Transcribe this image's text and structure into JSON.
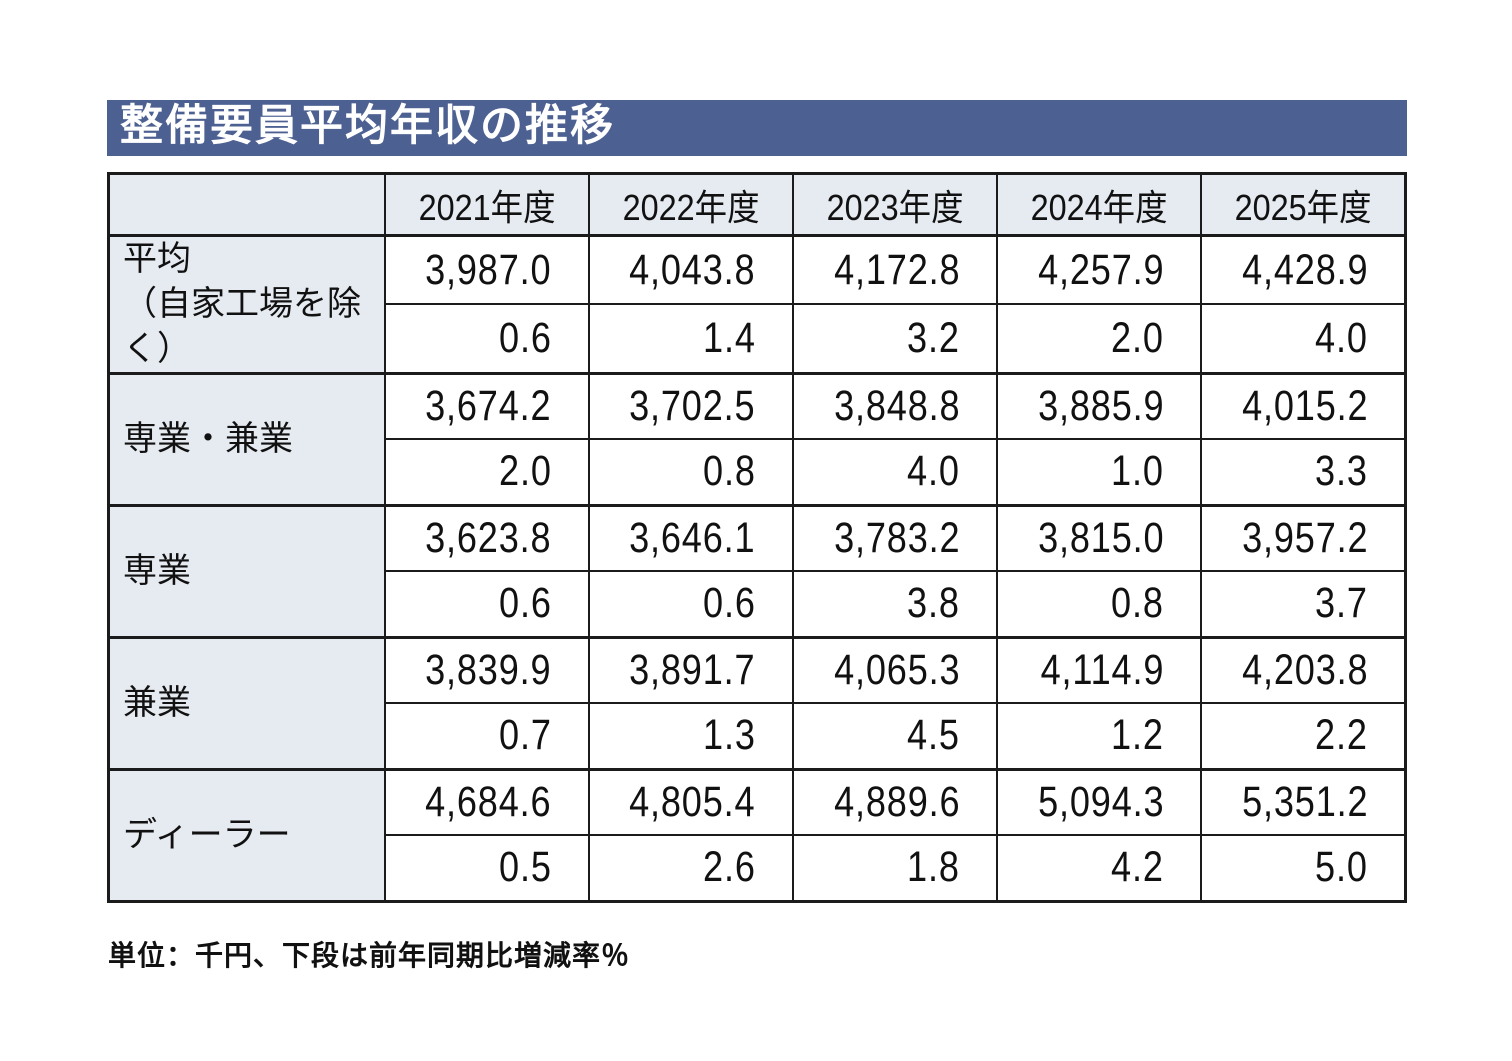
{
  "title": "整備要員平均年収の推移",
  "footnote": "単位：千円、下段は前年同期比増減率％",
  "colors": {
    "title_bg": "#4d6092",
    "header_bg": "#e6eaf1",
    "border": "#1b1b1b",
    "title_text": "#ffffff",
    "text": "#111111"
  },
  "chart_data": {
    "type": "table",
    "title": "整備要員平均年収の推移",
    "unit_note": "単位：千円、下段は前年同期比増減率％",
    "value_unit": "千円",
    "change_unit": "前年同期比増減率％",
    "columns": [
      "2021年度",
      "2022年度",
      "2023年度",
      "2024年度",
      "2025年度"
    ],
    "rows": [
      {
        "label": "平均",
        "label2": "（自家工場を除く）",
        "values": [
          "3,987.0",
          "4,043.8",
          "4,172.8",
          "4,257.9",
          "4,428.9"
        ],
        "changes": [
          "0.6",
          "1.4",
          "3.2",
          "2.0",
          "4.0"
        ]
      },
      {
        "label": "専業・兼業",
        "label2": "",
        "values": [
          "3,674.2",
          "3,702.5",
          "3,848.8",
          "3,885.9",
          "4,015.2"
        ],
        "changes": [
          "2.0",
          "0.8",
          "4.0",
          "1.0",
          "3.3"
        ]
      },
      {
        "label": "専業",
        "label2": "",
        "values": [
          "3,623.8",
          "3,646.1",
          "3,783.2",
          "3,815.0",
          "3,957.2"
        ],
        "changes": [
          "0.6",
          "0.6",
          "3.8",
          "0.8",
          "3.7"
        ]
      },
      {
        "label": "兼業",
        "label2": "",
        "values": [
          "3,839.9",
          "3,891.7",
          "4,065.3",
          "4,114.9",
          "4,203.8"
        ],
        "changes": [
          "0.7",
          "1.3",
          "4.5",
          "1.2",
          "2.2"
        ]
      },
      {
        "label": "ディーラー",
        "label2": "",
        "values": [
          "4,684.6",
          "4,805.4",
          "4,889.6",
          "5,094.3",
          "5,351.2"
        ],
        "changes": [
          "0.5",
          "2.6",
          "1.8",
          "4.2",
          "5.0"
        ]
      }
    ]
  }
}
